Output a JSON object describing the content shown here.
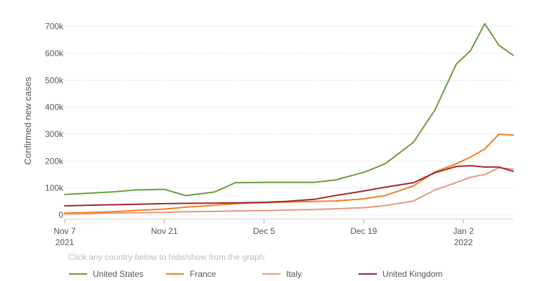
{
  "hint": "Click any country below to hide/show from the graph:",
  "chart_data": {
    "type": "line",
    "title": "",
    "xlabel": "",
    "ylabel": "Confirmed new cases",
    "x_ticks": [
      {
        "date": "2021-11-07",
        "label": "Nov 7",
        "sublabel": "2021"
      },
      {
        "date": "2021-11-21",
        "label": "Nov 21",
        "sublabel": ""
      },
      {
        "date": "2021-12-05",
        "label": "Dec 5",
        "sublabel": ""
      },
      {
        "date": "2021-12-19",
        "label": "Dec 19",
        "sublabel": ""
      },
      {
        "date": "2022-01-02",
        "label": "Jan 2",
        "sublabel": "2022"
      }
    ],
    "y_ticks": [
      {
        "value": 0,
        "label": "0"
      },
      {
        "value": 100000,
        "label": "100k"
      },
      {
        "value": 200000,
        "label": "200k"
      },
      {
        "value": 300000,
        "label": "300k"
      },
      {
        "value": 400000,
        "label": "400k"
      },
      {
        "value": 500000,
        "label": "500k"
      },
      {
        "value": 600000,
        "label": "600k"
      },
      {
        "value": 700000,
        "label": "700k"
      }
    ],
    "xlim": [
      "2021-11-07",
      "2022-01-09"
    ],
    "ylim": [
      0,
      720000
    ],
    "grid": "horizontal dotted",
    "legend_position": "bottom",
    "x": [
      "2021-11-07",
      "2021-11-10",
      "2021-11-14",
      "2021-11-17",
      "2021-11-21",
      "2021-11-24",
      "2021-11-28",
      "2021-12-01",
      "2021-12-05",
      "2021-12-08",
      "2021-12-12",
      "2021-12-15",
      "2021-12-19",
      "2021-12-22",
      "2021-12-26",
      "2021-12-29",
      "2022-01-01",
      "2022-01-03",
      "2022-01-05",
      "2022-01-07",
      "2022-01-09"
    ],
    "series": [
      {
        "name": "United States",
        "color": "#6a9a3f",
        "values": [
          76000,
          80000,
          86000,
          93000,
          95000,
          72000,
          85000,
          120000,
          121000,
          121000,
          121000,
          130000,
          158000,
          190000,
          270000,
          390000,
          560000,
          610000,
          710000,
          630000,
          593000
        ]
      },
      {
        "name": "France",
        "color": "#f07f1d",
        "values": [
          7000,
          9000,
          12000,
          17000,
          22000,
          29000,
          36000,
          42000,
          46000,
          48000,
          50000,
          52000,
          60000,
          72000,
          108000,
          160000,
          190000,
          215000,
          245000,
          300000,
          297000
        ]
      },
      {
        "name": "Italy",
        "color": "#e8957a",
        "values": [
          4000,
          5000,
          7000,
          8000,
          10000,
          12000,
          13000,
          15000,
          16000,
          18000,
          20000,
          23000,
          27000,
          35000,
          52000,
          93000,
          120000,
          140000,
          150000,
          175000,
          170000
        ]
      },
      {
        "name": "United Kingdom",
        "color": "#a1252f",
        "values": [
          34000,
          36000,
          38000,
          40000,
          42000,
          43000,
          44000,
          45000,
          47000,
          50000,
          58000,
          72000,
          89000,
          103000,
          120000,
          157000,
          180000,
          183000,
          178000,
          178000,
          162000
        ]
      }
    ]
  }
}
